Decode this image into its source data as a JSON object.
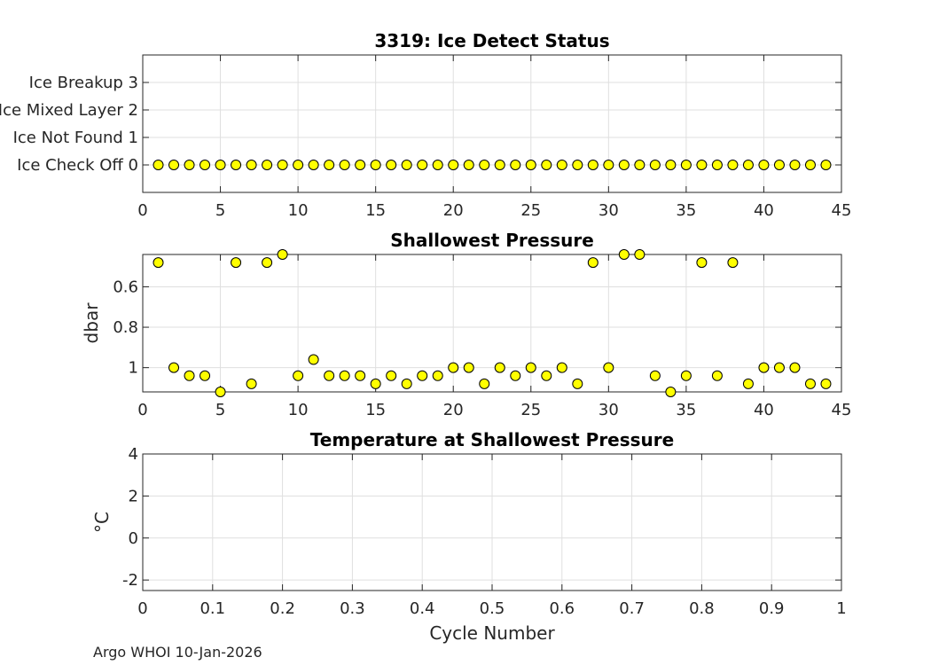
{
  "chart_data": [
    {
      "type": "scatter",
      "title": "3319: Ice Detect Status",
      "xlabel": "",
      "ylabel": "",
      "xlim": [
        0,
        45
      ],
      "ylim": [
        -1,
        4
      ],
      "xticks": [
        0,
        5,
        10,
        15,
        20,
        25,
        30,
        35,
        40,
        45
      ],
      "yticks": [
        {
          "value": 0,
          "label": "Ice Check Off 0"
        },
        {
          "value": 1,
          "label": "Ice Not Found 1"
        },
        {
          "value": 2,
          "label": "Ice Mixed Layer 2"
        },
        {
          "value": 3,
          "label": "Ice Breakup 3"
        }
      ],
      "grid": true,
      "marker_color": "#ffff00",
      "x": [
        1,
        2,
        3,
        4,
        5,
        6,
        7,
        8,
        9,
        10,
        11,
        12,
        13,
        14,
        15,
        16,
        17,
        18,
        19,
        20,
        21,
        22,
        23,
        24,
        25,
        26,
        27,
        28,
        29,
        30,
        31,
        32,
        33,
        34,
        35,
        36,
        37,
        38,
        39,
        40,
        41,
        42,
        43,
        44
      ],
      "y": [
        0,
        0,
        0,
        0,
        0,
        0,
        0,
        0,
        0,
        0,
        0,
        0,
        0,
        0,
        0,
        0,
        0,
        0,
        0,
        0,
        0,
        0,
        0,
        0,
        0,
        0,
        0,
        0,
        0,
        0,
        0,
        0,
        0,
        0,
        0,
        0,
        0,
        0,
        0,
        0,
        0,
        0,
        0,
        0
      ]
    },
    {
      "type": "scatter",
      "title": "Shallowest Pressure",
      "xlabel": "",
      "ylabel": "dbar",
      "xlim": [
        0,
        45
      ],
      "ylim": [
        0.44,
        1.12
      ],
      "y_reversed": true,
      "xticks": [
        0,
        5,
        10,
        15,
        20,
        25,
        30,
        35,
        40,
        45
      ],
      "yticks": [
        {
          "value": 0.6,
          "label": "0.6"
        },
        {
          "value": 0.8,
          "label": "0.8"
        },
        {
          "value": 1.0,
          "label": "1"
        }
      ],
      "grid": true,
      "marker_color": "#ffff00",
      "x": [
        1,
        2,
        3,
        4,
        5,
        6,
        7,
        8,
        9,
        10,
        11,
        12,
        13,
        14,
        15,
        16,
        17,
        18,
        19,
        20,
        21,
        22,
        23,
        24,
        25,
        26,
        27,
        28,
        29,
        30,
        31,
        32,
        33,
        34,
        35,
        36,
        37,
        38,
        39,
        40,
        41,
        42,
        43,
        44
      ],
      "y": [
        0.48,
        1.0,
        1.04,
        1.04,
        1.12,
        0.48,
        1.08,
        0.48,
        0.44,
        1.04,
        0.96,
        1.04,
        1.04,
        1.04,
        1.08,
        1.04,
        1.08,
        1.04,
        1.04,
        1.0,
        1.0,
        1.08,
        1.0,
        1.04,
        1.0,
        1.04,
        1.0,
        1.08,
        0.48,
        1.0,
        0.44,
        0.44,
        1.04,
        1.12,
        1.04,
        0.48,
        1.04,
        0.48,
        1.08,
        1.0,
        1.0,
        1.0,
        1.08,
        1.08
      ]
    },
    {
      "type": "scatter",
      "title": "Temperature at Shallowest Pressure",
      "xlabel": "Cycle Number",
      "ylabel": "°C",
      "xlim": [
        0,
        1
      ],
      "ylim": [
        -2.5,
        4
      ],
      "xticks": [
        {
          "value": 0,
          "label": "0"
        },
        {
          "value": 0.1,
          "label": "0.1"
        },
        {
          "value": 0.2,
          "label": "0.2"
        },
        {
          "value": 0.3,
          "label": "0.3"
        },
        {
          "value": 0.4,
          "label": "0.4"
        },
        {
          "value": 0.5,
          "label": "0.5"
        },
        {
          "value": 0.6,
          "label": "0.6"
        },
        {
          "value": 0.7,
          "label": "0.7"
        },
        {
          "value": 0.8,
          "label": "0.8"
        },
        {
          "value": 0.9,
          "label": "0.9"
        },
        {
          "value": 1,
          "label": "1"
        }
      ],
      "yticks": [
        {
          "value": -2,
          "label": "-2"
        },
        {
          "value": 0,
          "label": "0"
        },
        {
          "value": 2,
          "label": "2"
        },
        {
          "value": 4,
          "label": "4"
        }
      ],
      "grid": true,
      "x": [],
      "y": []
    }
  ],
  "footer": "Argo WHOI 10-Jan-2026"
}
